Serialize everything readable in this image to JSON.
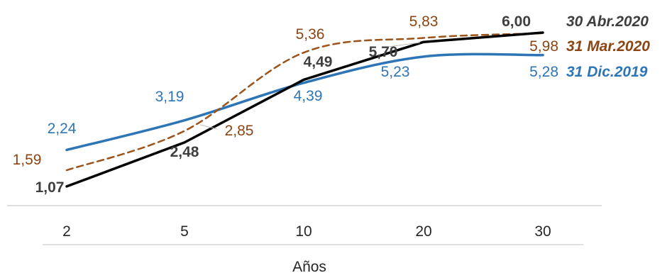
{
  "chart_data": {
    "type": "line",
    "categories": [
      "2",
      "5",
      "10",
      "20",
      "30"
    ],
    "xlabel": "Años",
    "ylabel": "",
    "title": "",
    "ylim": [
      0.5,
      6.5
    ],
    "grid": false,
    "legend_placement": "right-end-of-lines",
    "series": [
      {
        "name": "30 Abr.2020",
        "values": [
          1.07,
          2.48,
          4.49,
          5.7,
          6.0
        ],
        "labels": [
          "1,07",
          "2,48",
          "4,49",
          "5,70",
          "6,00"
        ],
        "color": "#000000",
        "style": "solid",
        "label_bold": true,
        "label_color": "#3f3f3f"
      },
      {
        "name": "31 Mar.2020",
        "values": [
          1.59,
          2.85,
          5.36,
          5.83,
          5.98
        ],
        "labels": [
          "1,59",
          "2,85",
          "5,36",
          "5,83",
          "5,98"
        ],
        "color": "#9c5319",
        "style": "dashed",
        "label_bold": false,
        "label_color": "#8b4513"
      },
      {
        "name": "31 Dic.2019",
        "values": [
          2.24,
          3.19,
          4.39,
          5.23,
          5.28
        ],
        "labels": [
          "2,24",
          "3,19",
          "4,39",
          "5,23",
          "5,28"
        ],
        "color": "#2e75b6",
        "style": "solid",
        "label_bold": false,
        "label_color": "#2e75b6"
      }
    ]
  }
}
